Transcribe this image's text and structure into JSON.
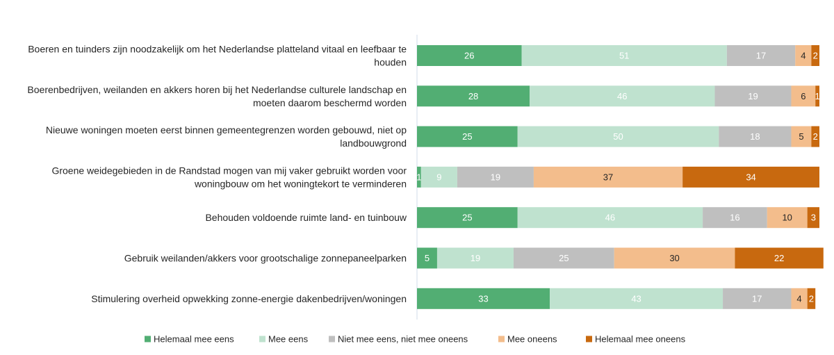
{
  "chart_data": {
    "type": "bar",
    "orientation": "horizontal",
    "stacked": true,
    "title": "",
    "xlabel": "",
    "ylabel": "",
    "xlim": [
      0,
      100
    ],
    "grid": false,
    "legend_placement": "bottom",
    "categories": [
      [
        "Boeren en tuinders zijn noodzakelijk om het Nederlandse platteland vitaal en leefbaar te",
        "houden"
      ],
      [
        "Boerenbedrijven, weilanden en akkers horen bij het Nederlandse culturele landschap en",
        "moeten daarom beschermd worden"
      ],
      [
        "Nieuwe woningen moeten eerst binnen gemeentegrenzen worden gebouwd, niet op",
        "landbouwgrond"
      ],
      [
        "Groene weidegebieden in de Randstad mogen van mij vaker gebruikt worden voor",
        "woningbouw om het woningtekort te verminderen"
      ],
      [
        "Behouden voldoende ruimte land- en tuinbouw"
      ],
      [
        "Gebruik weilanden/akkers voor grootschalige zonnepaneelparken"
      ],
      [
        "Stimulering overheid opwekking zonne-energie dakenbedrijven/woningen"
      ]
    ],
    "series": [
      {
        "name": "Helemaal mee eens",
        "color": "#52ae73",
        "label_color": "#ffffff",
        "values": [
          26,
          28,
          25,
          1,
          25,
          5,
          33
        ]
      },
      {
        "name": "Mee eens",
        "color": "#bfe2cf",
        "label_color": "#ffffff",
        "values": [
          51,
          46,
          50,
          9,
          46,
          19,
          43
        ]
      },
      {
        "name": "Niet mee eens, niet mee oneens",
        "color": "#bfbfbf",
        "label_color": "#ffffff",
        "values": [
          17,
          19,
          18,
          19,
          16,
          25,
          17
        ]
      },
      {
        "name": "Mee oneens",
        "color": "#f3bd8c",
        "label_color": "#262626",
        "values": [
          4,
          6,
          5,
          37,
          10,
          30,
          4
        ]
      },
      {
        "name": "Helemaal mee  oneens",
        "color": "#c8690f",
        "label_color": "#ffffff",
        "values": [
          2,
          1,
          2,
          34,
          3,
          22,
          2
        ]
      }
    ]
  }
}
